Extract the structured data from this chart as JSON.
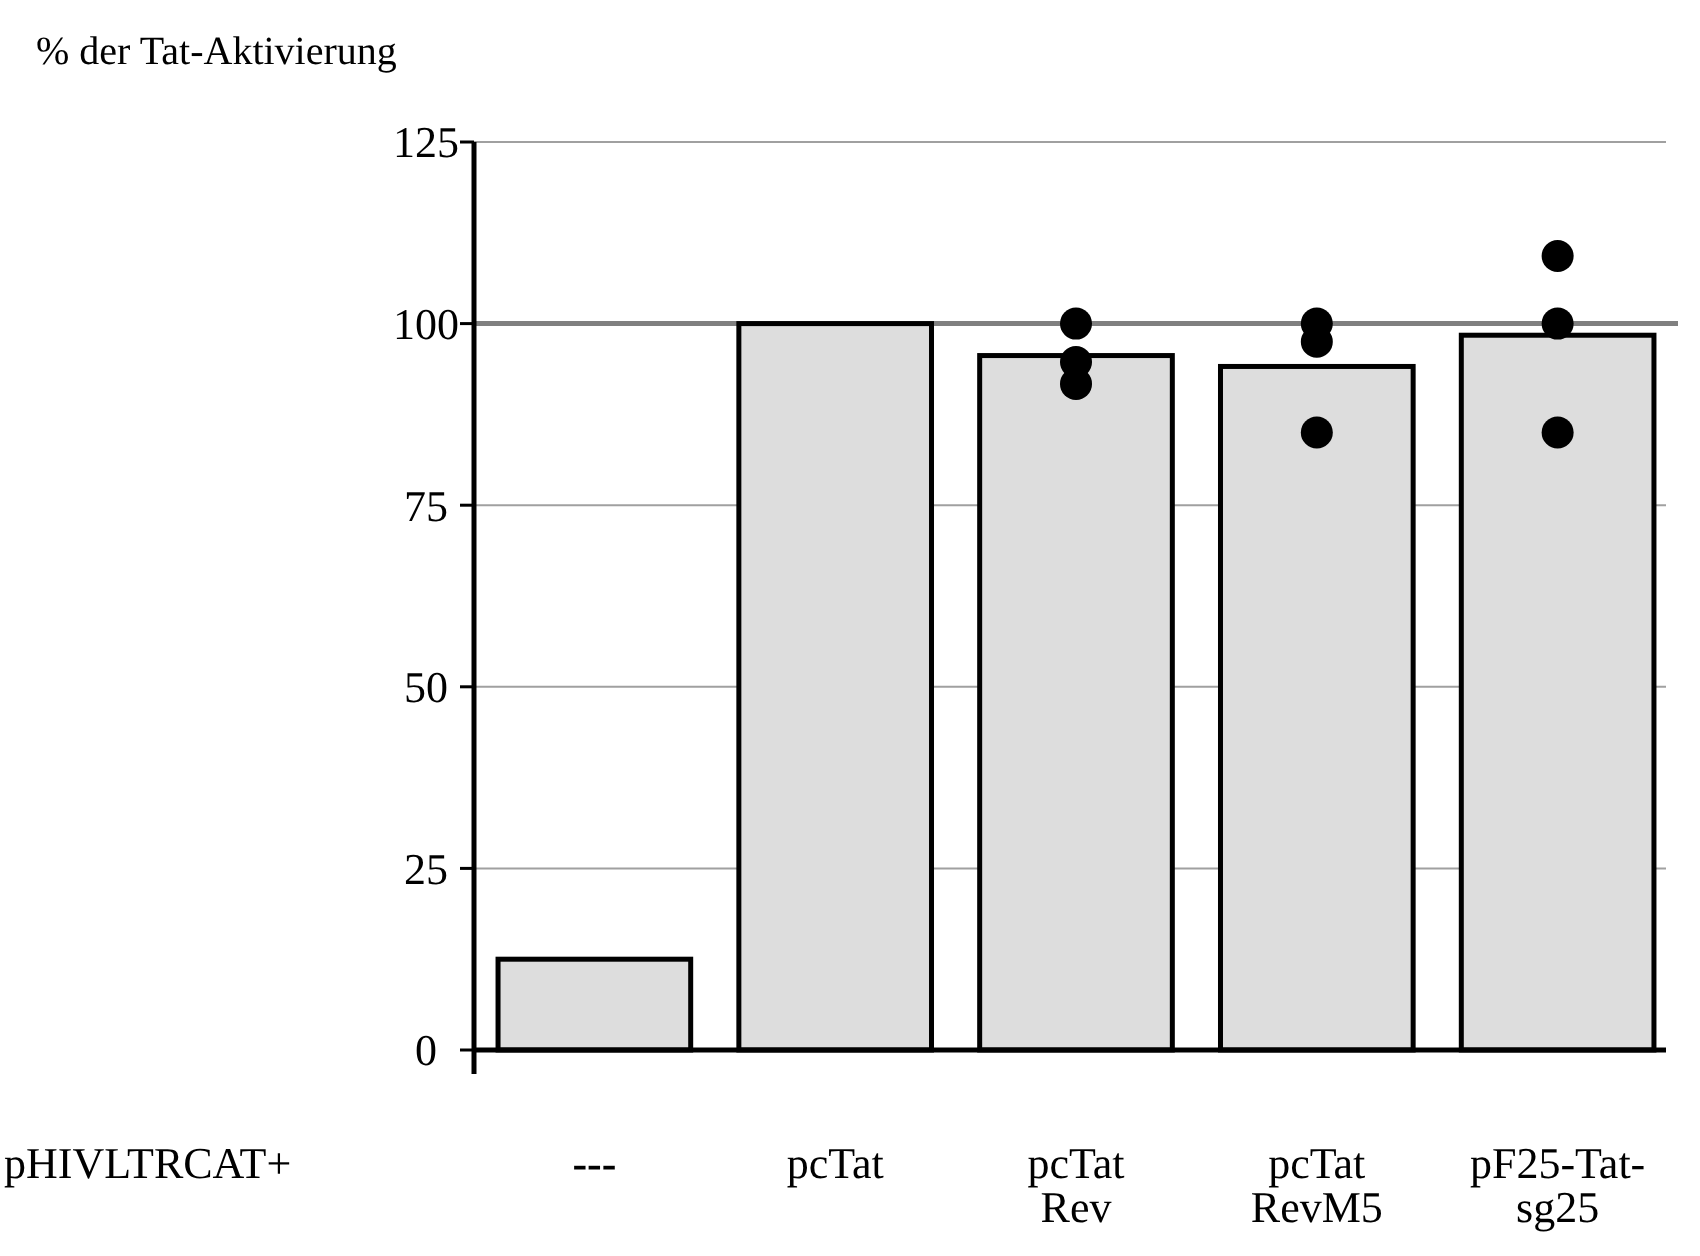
{
  "chart_data": {
    "type": "bar",
    "ylabel": "% der Tat-Aktivierung",
    "categories": [
      "---",
      "pcTat",
      "pcTat\nRev",
      "pcTat\nRevM5",
      "pF25-Tat-\nsg25"
    ],
    "series": [
      {
        "color": "#dddddd",
        "values": [
          12.5,
          100,
          95.6,
          94.1,
          98.4
        ]
      },
      {
        "type": "scatter",
        "color": "#000000",
        "x": [
          "pcTat\nRev",
          "pcTat\nRev",
          "pcTat\nRev",
          "pcTat\nRevM5",
          "pcTat\nRevM5",
          "pcTat\nRevM5",
          "pF25-Tat-\nsg25",
          "pF25-Tat-\nsg25",
          "pF25-Tat-\nsg25"
        ],
        "values": [
          100,
          94.7,
          91.7,
          100,
          97.5,
          85,
          109.3,
          100,
          85
        ]
      }
    ],
    "ylim": [
      0,
      125
    ],
    "yticks": [
      0,
      25,
      50,
      75,
      100,
      125
    ],
    "grid": "y",
    "marker": "circle",
    "ref_lines": [
      {
        "axis": "y",
        "value": 100,
        "color": "#808080"
      }
    ],
    "annotations": [
      "pHIVLTRCAT+"
    ]
  }
}
